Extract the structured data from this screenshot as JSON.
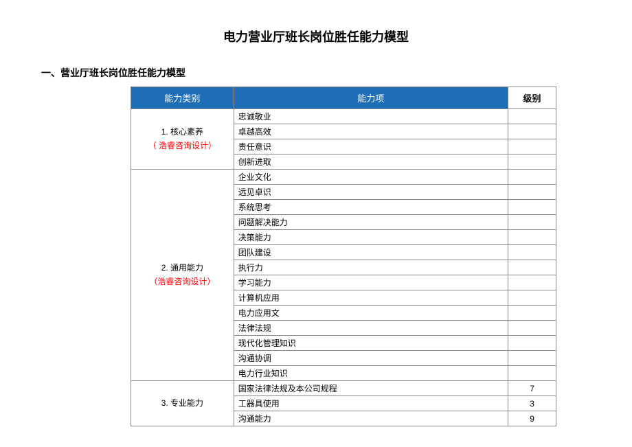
{
  "page_title": "电力营业厅班长岗位胜任能力模型",
  "section_title": "一、营业厅班长岗位胜任能力模型",
  "table": {
    "headers": {
      "category": "能力类别",
      "item": "能力项",
      "level": "级别"
    },
    "groups": [
      {
        "category_name": "1. 核心素养",
        "category_note": "（ 浩睿咨询设计）",
        "items": [
          {
            "name": "忠诚敬业",
            "level": ""
          },
          {
            "name": "卓越高效",
            "level": ""
          },
          {
            "name": "责任意识",
            "level": ""
          },
          {
            "name": "创新进取",
            "level": ""
          }
        ]
      },
      {
        "category_name": "2. 通用能力",
        "category_note": "（浩睿咨询设计）",
        "items": [
          {
            "name": "企业文化",
            "level": ""
          },
          {
            "name": "远见卓识",
            "level": ""
          },
          {
            "name": "系统思考",
            "level": ""
          },
          {
            "name": "问题解决能力",
            "level": ""
          },
          {
            "name": "决策能力",
            "level": ""
          },
          {
            "name": "团队建设",
            "level": ""
          },
          {
            "name": "执行力",
            "level": ""
          },
          {
            "name": "学习能力",
            "level": ""
          },
          {
            "name": "计算机应用",
            "level": ""
          },
          {
            "name": "电力应用文",
            "level": ""
          },
          {
            "name": "法律法规",
            "level": ""
          },
          {
            "name": "现代化管理知识",
            "level": ""
          },
          {
            "name": "沟通协调",
            "level": ""
          },
          {
            "name": "电力行业知识",
            "level": ""
          }
        ]
      },
      {
        "category_name": "3. 专业能力",
        "category_note": "",
        "items": [
          {
            "name": "国家法律法规及本公司规程",
            "level": "7"
          },
          {
            "name": "工器具使用",
            "level": "3"
          },
          {
            "name": "沟通能力",
            "level": "9"
          }
        ]
      }
    ]
  },
  "colors": {
    "header_bg": "#1e6fb8",
    "header_text": "#ffffff",
    "border": "#888888",
    "note_text": "#ff0000",
    "body_text": "#000000",
    "background": "#ffffff"
  }
}
